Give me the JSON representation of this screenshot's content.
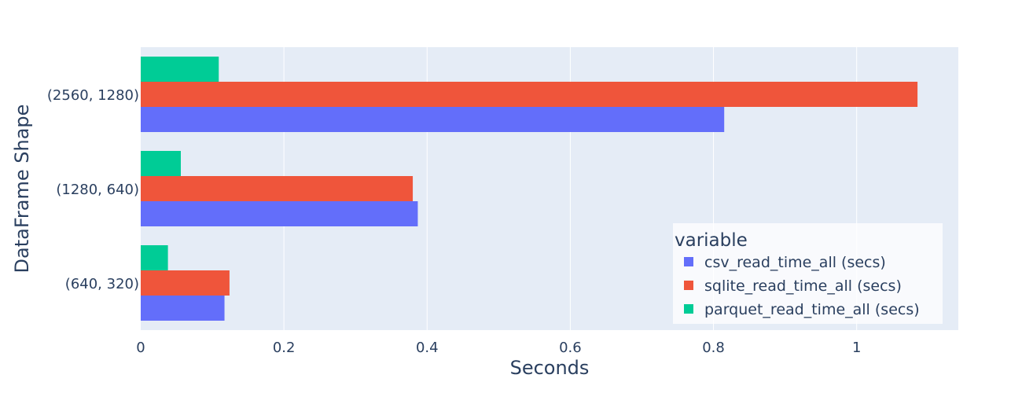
{
  "chart_data": {
    "type": "bar",
    "orientation": "horizontal",
    "categories": [
      "(640, 320)",
      "(1280, 640)",
      "(2560, 1280)"
    ],
    "series": [
      {
        "name": "csv_read_time_all (secs)",
        "color": "#636efa",
        "values": [
          0.117,
          0.387,
          0.815
        ]
      },
      {
        "name": "sqlite_read_time_all (secs)",
        "color": "#ef553b",
        "values": [
          0.124,
          0.38,
          1.085
        ]
      },
      {
        "name": "parquet_read_time_all (secs)",
        "color": "#00cc96",
        "values": [
          0.038,
          0.056,
          0.109
        ]
      }
    ],
    "xlabel": "Seconds",
    "ylabel": "DataFrame Shape",
    "xlim": [
      0,
      1.142
    ],
    "xticks": [
      0,
      0.2,
      0.4,
      0.6,
      0.8,
      1
    ],
    "xtick_labels": [
      "0",
      "0.2",
      "0.4",
      "0.6",
      "0.8",
      "1"
    ],
    "grid": true,
    "legend": {
      "title": "variable",
      "position": "bottom-right"
    },
    "plot_background": "#e5ecf6"
  }
}
